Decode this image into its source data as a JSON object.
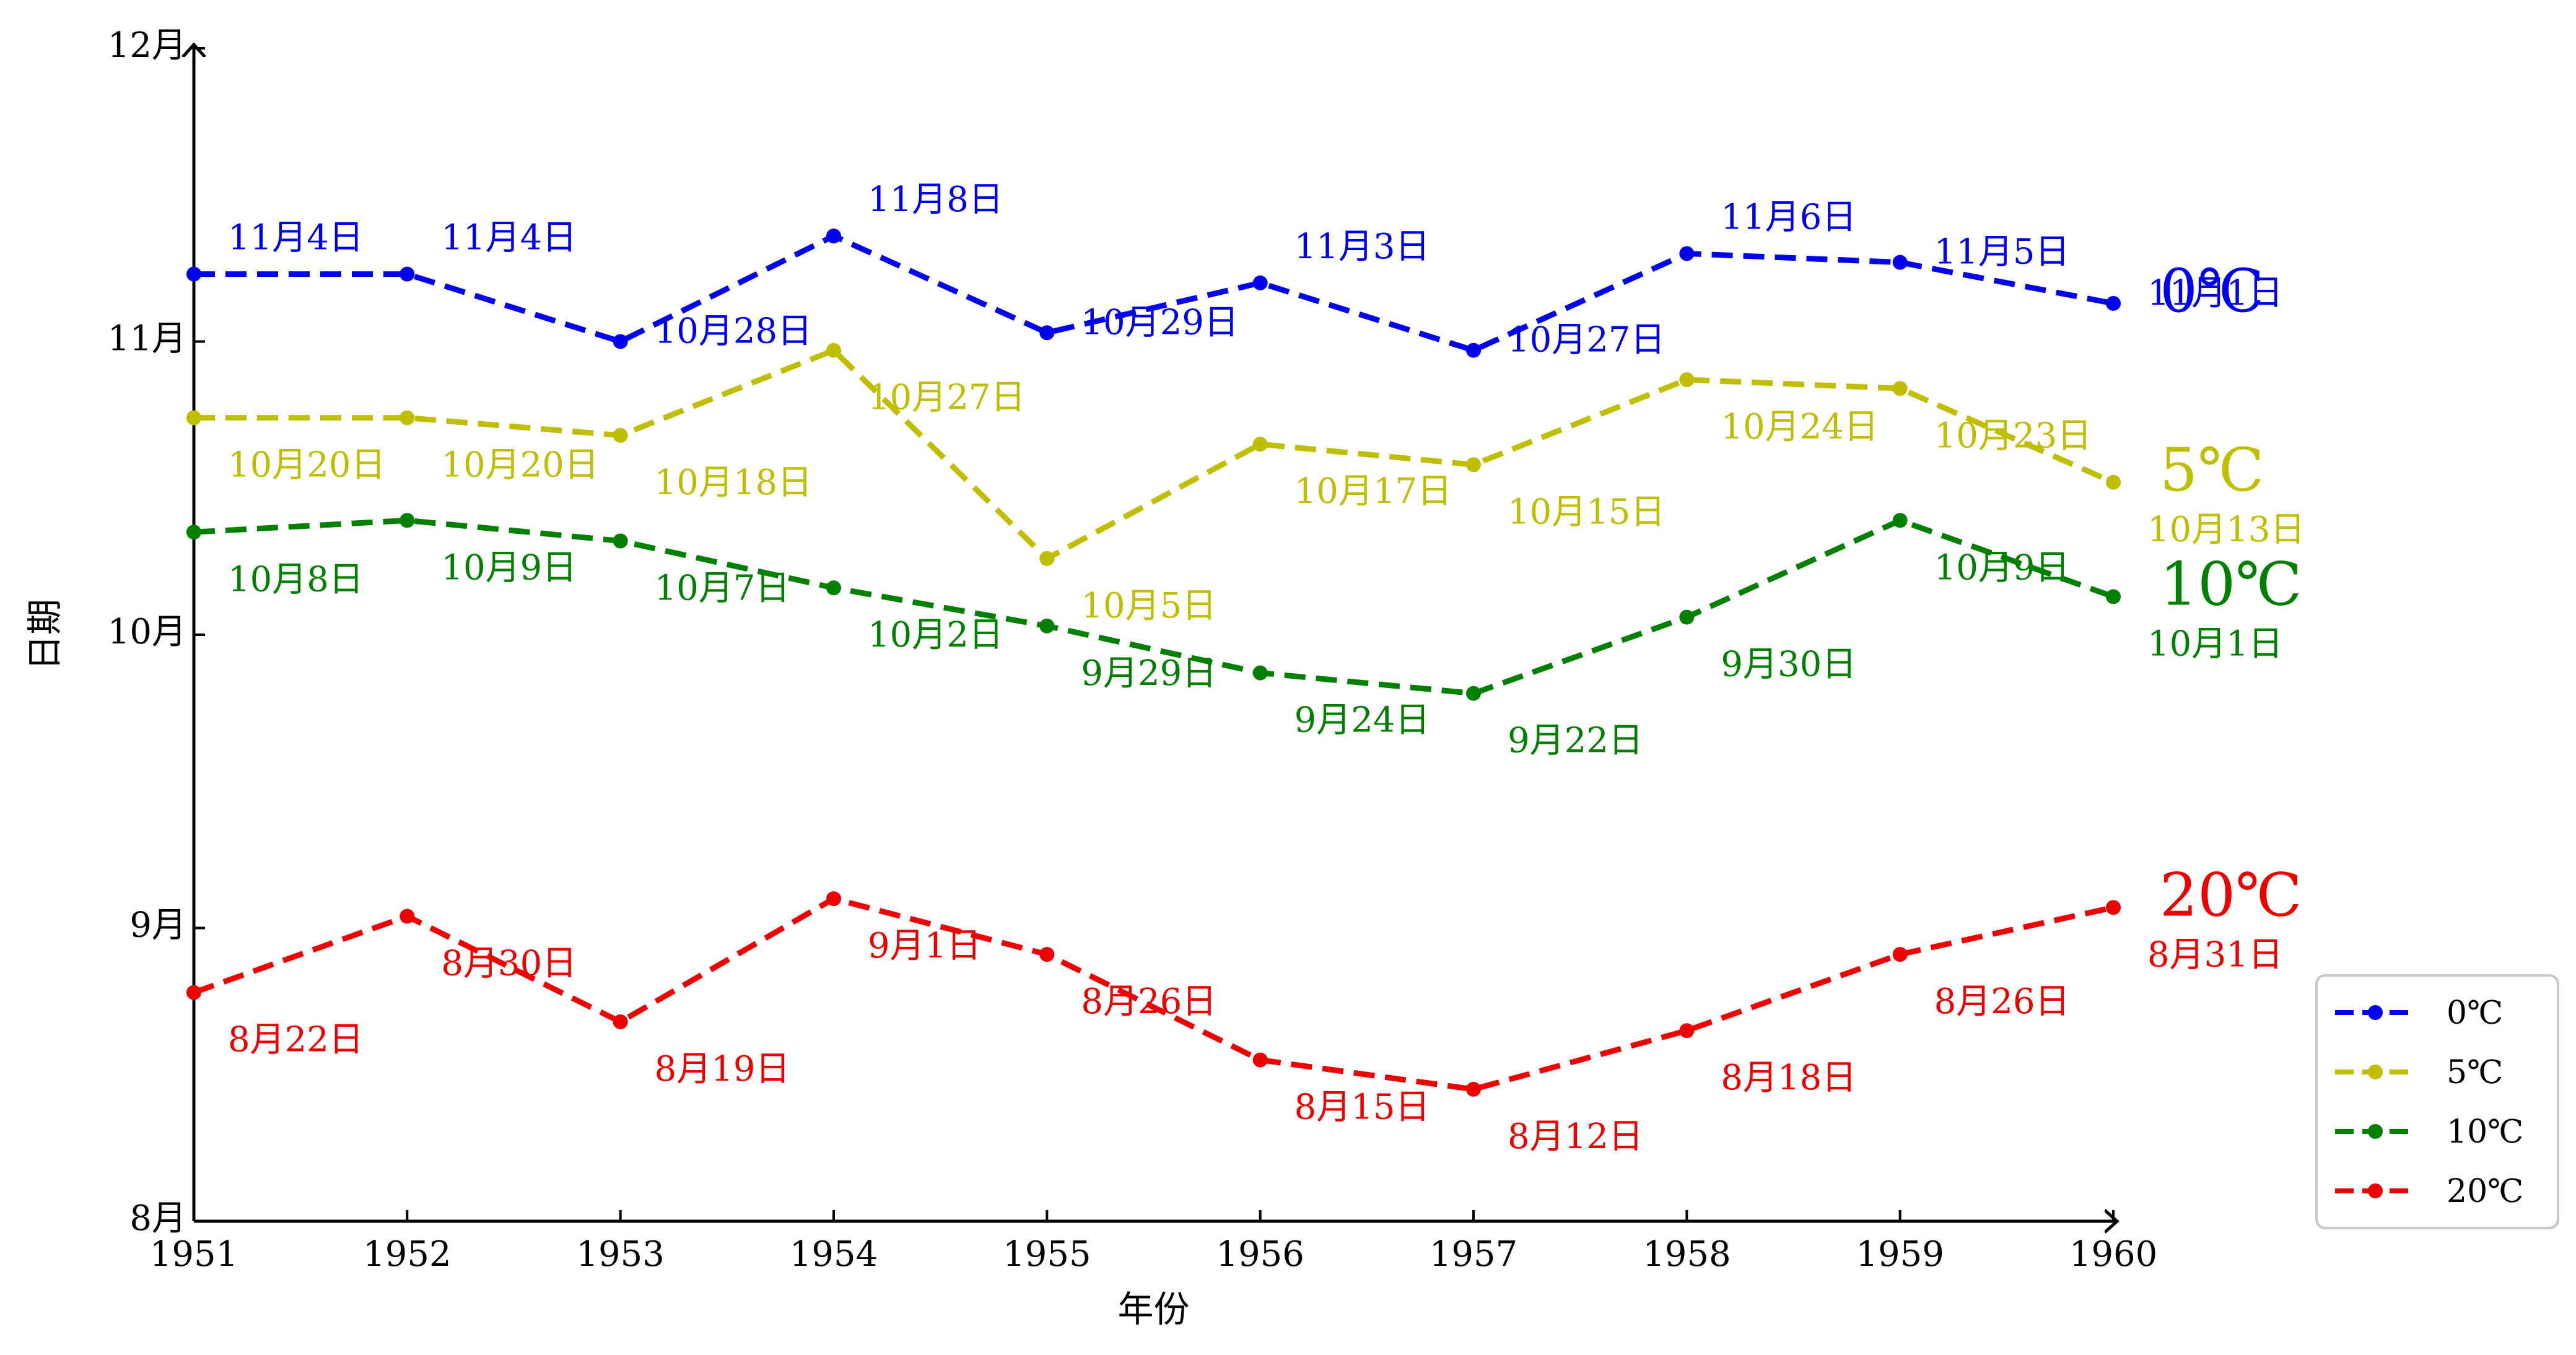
{
  "chart_data": {
    "type": "line",
    "xlabel": "年份",
    "ylabel": "日期",
    "x": [
      1951,
      1952,
      1953,
      1954,
      1955,
      1956,
      1957,
      1958,
      1959,
      1960
    ],
    "x_ticks": [
      "1951",
      "1952",
      "1953",
      "1954",
      "1955",
      "1956",
      "1957",
      "1958",
      "1959",
      "1960"
    ],
    "ylim": [
      8,
      12
    ],
    "y_ticks": [
      {
        "value": 8,
        "label": "8月"
      },
      {
        "value": 9,
        "label": "9月"
      },
      {
        "value": 10,
        "label": "10月"
      },
      {
        "value": 11,
        "label": "11月"
      },
      {
        "value": 12,
        "label": "12月"
      }
    ],
    "grid": false,
    "legend_position": "bottom-right",
    "series": [
      {
        "name": "0℃",
        "color": "#0000ee",
        "end_label": "0℃",
        "values": [
          11.23,
          11.23,
          11.0,
          11.36,
          11.03,
          11.2,
          10.97,
          11.3,
          11.27,
          11.13
        ],
        "labels": [
          "11月4日",
          "11月4日",
          "10月28日",
          "11月8日",
          "10月29日",
          "11月3日",
          "10月27日",
          "11月6日",
          "11月5日",
          "11月1日"
        ]
      },
      {
        "name": "5℃",
        "color": "#bfbf00",
        "end_label": "5℃",
        "values": [
          10.74,
          10.74,
          10.68,
          10.97,
          10.26,
          10.65,
          10.58,
          10.87,
          10.84,
          10.52
        ],
        "labels": [
          "10月20日",
          "10月20日",
          "10月18日",
          "10月27日",
          "10月5日",
          "10月17日",
          "10月15日",
          "10月24日",
          "10月23日",
          "10月13日"
        ]
      },
      {
        "name": "10℃",
        "color": "#007f00",
        "end_label": "10℃",
        "values": [
          10.35,
          10.39,
          10.32,
          10.16,
          10.03,
          9.87,
          9.8,
          10.06,
          10.39,
          10.13
        ],
        "labels": [
          "10月8日",
          "10月9日",
          "10月7日",
          "10月2日",
          "9月29日",
          "9月24日",
          "9月22日",
          "9月30日",
          "10月9日",
          "10月1日"
        ]
      },
      {
        "name": "20℃",
        "color": "#ee0000",
        "end_label": "20℃",
        "values": [
          8.78,
          9.04,
          8.68,
          9.1,
          8.91,
          8.55,
          8.45,
          8.65,
          8.91,
          9.07
        ],
        "labels": [
          "8月22日",
          "8月30日",
          "8月19日",
          "9月1日",
          "8月26日",
          "8月15日",
          "8月12日",
          "8月18日",
          "8月26日",
          "8月31日"
        ]
      }
    ]
  }
}
